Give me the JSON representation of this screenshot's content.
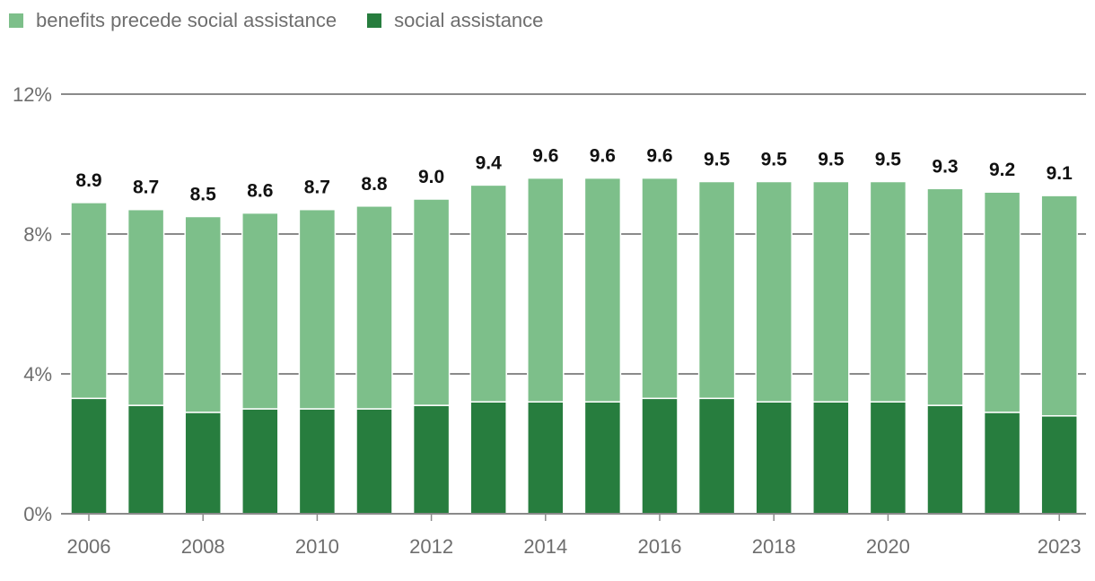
{
  "legend": {
    "items": [
      {
        "label": "benefits precede social assistance",
        "color": "#7dbf8a"
      },
      {
        "label": "social assistance",
        "color": "#277d3e"
      }
    ]
  },
  "chart_data": {
    "type": "bar",
    "stacked": true,
    "categories": [
      "2006",
      "2007",
      "2008",
      "2009",
      "2010",
      "2011",
      "2012",
      "2013",
      "2014",
      "2015",
      "2016",
      "2017",
      "2018",
      "2019",
      "2020",
      "2021",
      "2022",
      "2023"
    ],
    "x_tick_labels": [
      "2006",
      "",
      "2008",
      "",
      "2010",
      "",
      "2012",
      "",
      "2014",
      "",
      "2016",
      "",
      "2018",
      "",
      "2020",
      "",
      "",
      "2023"
    ],
    "series": [
      {
        "name": "social assistance",
        "color": "#277d3e",
        "values": [
          3.3,
          3.1,
          2.9,
          3.0,
          3.0,
          3.0,
          3.1,
          3.2,
          3.2,
          3.2,
          3.3,
          3.3,
          3.2,
          3.2,
          3.2,
          3.1,
          2.9,
          2.8
        ]
      },
      {
        "name": "benefits precede social assistance",
        "color": "#7dbf8a",
        "values": [
          5.6,
          5.6,
          5.6,
          5.6,
          5.7,
          5.8,
          5.9,
          6.2,
          6.4,
          6.4,
          6.3,
          6.2,
          6.3,
          6.3,
          6.3,
          6.2,
          6.3,
          6.3
        ]
      }
    ],
    "totals": [
      "8.9",
      "8.7",
      "8.5",
      "8.6",
      "8.7",
      "8.8",
      "9.0",
      "9.4",
      "9.6",
      "9.6",
      "9.6",
      "9.5",
      "9.5",
      "9.5",
      "9.5",
      "9.3",
      "9.2",
      "9.1"
    ],
    "ylim": [
      0,
      12
    ],
    "yticks": [
      0,
      4,
      8,
      12
    ],
    "ytick_labels": [
      "0%",
      "4%",
      "8%",
      "12%"
    ],
    "grid": true,
    "legend_position": "top-left"
  }
}
